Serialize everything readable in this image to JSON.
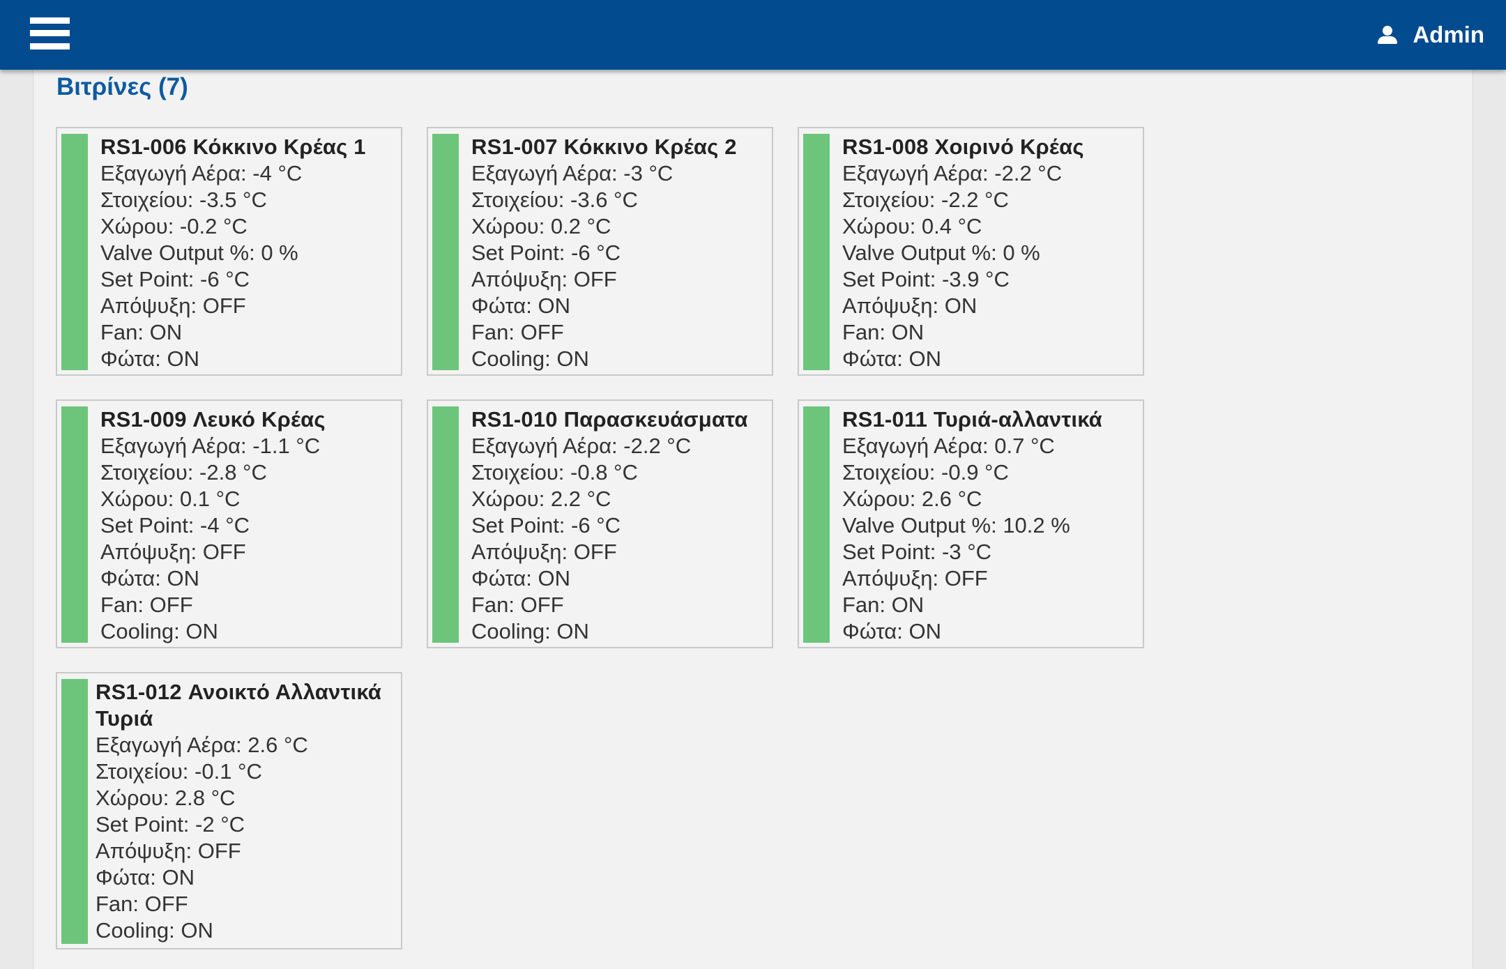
{
  "header": {
    "user_label": "Admin"
  },
  "section": {
    "title": "Βιτρίνες (7)"
  },
  "cards": [
    {
      "title": "RS1-006 Κόκκινο Κρέας 1",
      "status_color": "#6cc57b",
      "lines": [
        "Εξαγωγή Αέρα: -4 °C",
        "Στοιχείου: -3.5 °C",
        "Χώρου: -0.2 °C",
        "Valve Output %: 0 %",
        "Set Point: -6 °C",
        "Απόψυξη: OFF",
        "Fan: ON",
        "Φώτα: ON"
      ]
    },
    {
      "title": "RS1-007 Κόκκινο Κρέας 2",
      "status_color": "#6cc57b",
      "lines": [
        "Εξαγωγή Αέρα: -3 °C",
        "Στοιχείου: -3.6 °C",
        "Χώρου: 0.2 °C",
        "Set Point: -6 °C",
        "Απόψυξη: OFF",
        "Φώτα: ON",
        "Fan: OFF",
        "Cooling: ON"
      ]
    },
    {
      "title": "RS1-008 Χοιρινό Κρέας",
      "status_color": "#6cc57b",
      "lines": [
        "Εξαγωγή Αέρα: -2.2 °C",
        "Στοιχείου: -2.2 °C",
        "Χώρου: 0.4 °C",
        "Valve Output %: 0 %",
        "Set Point: -3.9 °C",
        "Απόψυξη: ON",
        "Fan: ON",
        "Φώτα: ON"
      ]
    },
    {
      "title": "RS1-009 Λευκό Κρέας",
      "status_color": "#6cc57b",
      "lines": [
        "Εξαγωγή Αέρα: -1.1 °C",
        "Στοιχείου: -2.8 °C",
        "Χώρου: 0.1 °C",
        "Set Point: -4 °C",
        "Απόψυξη: OFF",
        "Φώτα: ON",
        "Fan: OFF",
        "Cooling: ON"
      ]
    },
    {
      "title": "RS1-010 Παρασκευάσματα",
      "status_color": "#6cc57b",
      "lines": [
        "Εξαγωγή Αέρα: -2.2 °C",
        "Στοιχείου: -0.8 °C",
        "Χώρου: 2.2 °C",
        "Set Point: -6 °C",
        "Απόψυξη: OFF",
        "Φώτα: ON",
        "Fan: OFF",
        "Cooling: ON"
      ]
    },
    {
      "title": "RS1-011 Τυριά-αλλαντικά",
      "status_color": "#6cc57b",
      "lines": [
        "Εξαγωγή Αέρα: 0.7 °C",
        "Στοιχείου: -0.9 °C",
        "Χώρου: 2.6 °C",
        "Valve Output %: 10.2 %",
        "Set Point: -3 °C",
        "Απόψυξη: OFF",
        "Fan: ON",
        "Φώτα: ON"
      ]
    },
    {
      "title": "RS1-012 Ανοικτό Αλλαντικά Τυριά",
      "status_color": "#6cc57b",
      "lines": [
        "Εξαγωγή Αέρα: 2.6 °C",
        "Στοιχείου: -0.1 °C",
        "Χώρου: 2.8 °C",
        "Set Point: -2 °C",
        "Απόψυξη: OFF",
        "Φώτα: ON",
        "Fan: OFF",
        "Cooling: ON"
      ]
    }
  ]
}
